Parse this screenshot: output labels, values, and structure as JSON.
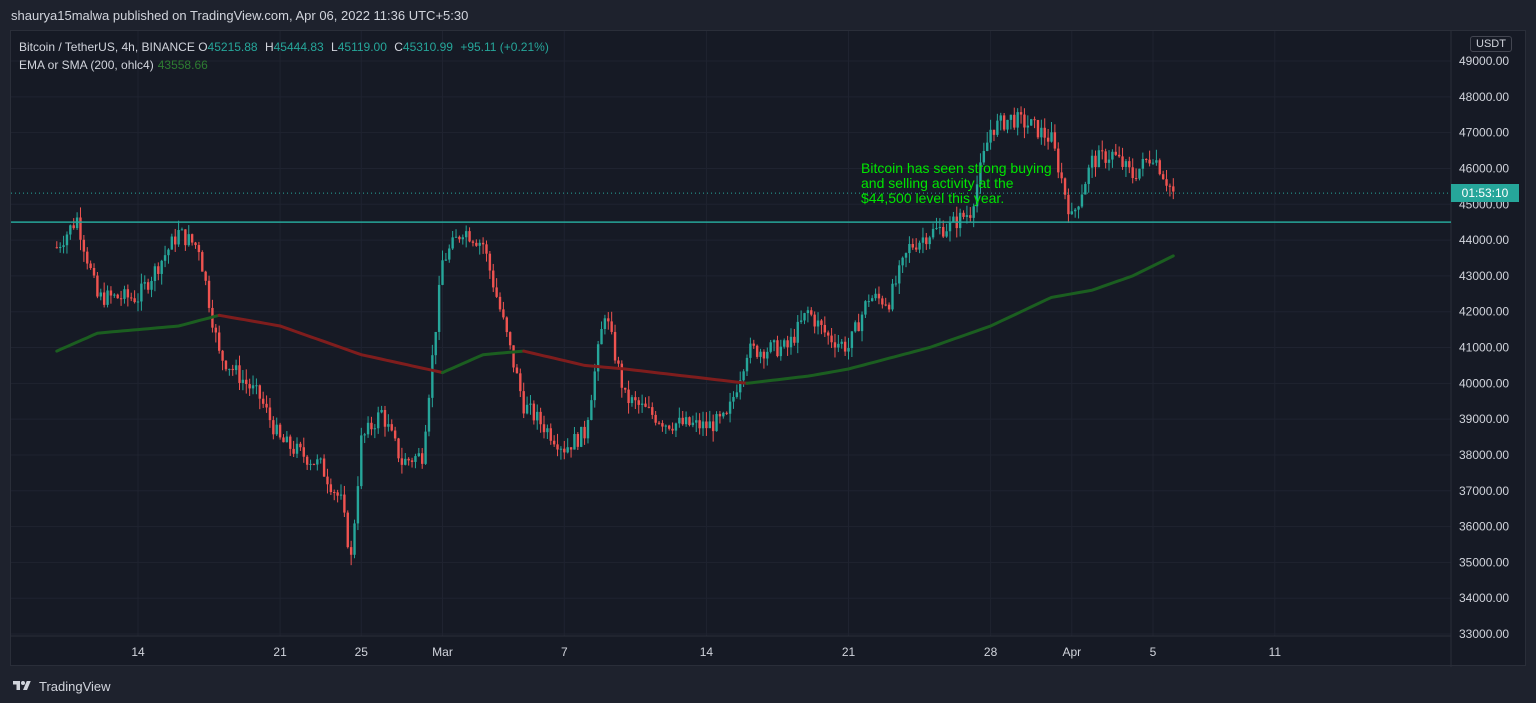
{
  "header": {
    "published_text": "shaurya15malwa published on TradingView.com, Apr 06, 2022 11:36 UTC+5:30"
  },
  "legend": {
    "symbol": "Bitcoin / TetherUS, 4h, BINANCE",
    "open_label": "O",
    "open": "45215.88",
    "high_label": "H",
    "high": "45444.83",
    "low_label": "L",
    "low": "45119.00",
    "close_label": "C",
    "close": "45310.99",
    "change": "+95.11 (+0.21%)",
    "indicator_name": "EMA or SMA (200, ohlc4)",
    "indicator_value": "43558.66"
  },
  "annotation": "Bitcoin has seen strong buying\nand selling activity at the\n$44,500 level this year.",
  "price_axis": {
    "currency": "USDT",
    "countdown": "01:53:10"
  },
  "footer": {
    "brand": "TradingView"
  },
  "colors": {
    "up": "#26a69a",
    "down": "#ef5350",
    "ma_up": "#1b5e20",
    "ma_down": "#7f1d1d",
    "support_line": "#26a69a",
    "annotation": "#00e600"
  },
  "chart_data": {
    "type": "candlestick",
    "ylim": [
      33000,
      49500
    ],
    "y_ticks": [
      "33000.00",
      "34000.00",
      "35000.00",
      "36000.00",
      "37000.00",
      "38000.00",
      "39000.00",
      "40000.00",
      "41000.00",
      "42000.00",
      "43000.00",
      "44000.00",
      "45000.00",
      "46000.00",
      "47000.00",
      "48000.00",
      "49000.00"
    ],
    "x_ticks": [
      "14",
      "21",
      "25",
      "Mar",
      "7",
      "14",
      "21",
      "28",
      "Apr",
      "5",
      "11"
    ],
    "horizontal_line": 44500,
    "last_price": 45310.99,
    "anchors": [
      {
        "date": "Feb 10",
        "price": 43800
      },
      {
        "date": "Feb 11",
        "price": 44600
      },
      {
        "date": "Feb 12",
        "price": 42400
      },
      {
        "date": "Feb 14",
        "price": 42400
      },
      {
        "date": "Feb 16",
        "price": 44200
      },
      {
        "date": "Feb 17",
        "price": 43800
      },
      {
        "date": "Feb 18",
        "price": 40800
      },
      {
        "date": "Feb 20",
        "price": 39600
      },
      {
        "date": "Feb 21",
        "price": 38400
      },
      {
        "date": "Feb 23",
        "price": 37700
      },
      {
        "date": "Feb 24",
        "price": 36700
      },
      {
        "date": "Feb 24",
        "price": 35100
      },
      {
        "date": "Feb 25",
        "price": 38400
      },
      {
        "date": "Feb 26",
        "price": 39200
      },
      {
        "date": "Feb 27",
        "price": 37800
      },
      {
        "date": "Feb 28",
        "price": 38000
      },
      {
        "date": "Mar 1",
        "price": 43400
      },
      {
        "date": "Mar 2",
        "price": 44300
      },
      {
        "date": "Mar 3",
        "price": 43900
      },
      {
        "date": "Mar 4",
        "price": 41700
      },
      {
        "date": "Mar 5",
        "price": 39400
      },
      {
        "date": "Mar 6",
        "price": 38800
      },
      {
        "date": "Mar 7",
        "price": 38200
      },
      {
        "date": "Mar 8",
        "price": 38600
      },
      {
        "date": "Mar 9",
        "price": 42000
      },
      {
        "date": "Mar 10",
        "price": 39600
      },
      {
        "date": "Mar 12",
        "price": 38900
      },
      {
        "date": "Mar 14",
        "price": 38800
      },
      {
        "date": "Mar 15",
        "price": 39000
      },
      {
        "date": "Mar 16",
        "price": 40900
      },
      {
        "date": "Mar 18",
        "price": 41000
      },
      {
        "date": "Mar 19",
        "price": 42000
      },
      {
        "date": "Mar 20",
        "price": 41300
      },
      {
        "date": "Mar 21",
        "price": 41000
      },
      {
        "date": "Mar 22",
        "price": 42400
      },
      {
        "date": "Mar 23",
        "price": 42300
      },
      {
        "date": "Mar 24",
        "price": 43800
      },
      {
        "date": "Mar 25",
        "price": 44200
      },
      {
        "date": "Mar 26",
        "price": 44400
      },
      {
        "date": "Mar 27",
        "price": 44800
      },
      {
        "date": "Mar 28",
        "price": 47100
      },
      {
        "date": "Mar 29",
        "price": 47400
      },
      {
        "date": "Mar 30",
        "price": 47200
      },
      {
        "date": "Mar 31",
        "price": 46800
      },
      {
        "date": "Apr 1",
        "price": 44600
      },
      {
        "date": "Apr 2",
        "price": 46200
      },
      {
        "date": "Apr 3",
        "price": 46400
      },
      {
        "date": "Apr 4",
        "price": 45800
      },
      {
        "date": "Apr 5",
        "price": 46400
      },
      {
        "date": "Apr 6",
        "price": 45310
      }
    ],
    "moving_average": [
      {
        "date": "Feb 10",
        "price": 40900
      },
      {
        "date": "Feb 12",
        "price": 41400
      },
      {
        "date": "Feb 16",
        "price": 41600
      },
      {
        "date": "Feb 18",
        "price": 41900
      },
      {
        "date": "Feb 21",
        "price": 41600
      },
      {
        "date": "Feb 25",
        "price": 40800
      },
      {
        "date": "Mar 1",
        "price": 40300
      },
      {
        "date": "Mar 3",
        "price": 40800
      },
      {
        "date": "Mar 5",
        "price": 40900
      },
      {
        "date": "Mar 8",
        "price": 40500
      },
      {
        "date": "Mar 10",
        "price": 40400
      },
      {
        "date": "Mar 16",
        "price": 40000
      },
      {
        "date": "Mar 19",
        "price": 40200
      },
      {
        "date": "Mar 21",
        "price": 40400
      },
      {
        "date": "Mar 25",
        "price": 41000
      },
      {
        "date": "Mar 28",
        "price": 41600
      },
      {
        "date": "Mar 31",
        "price": 42400
      },
      {
        "date": "Apr 2",
        "price": 42600
      },
      {
        "date": "Apr 4",
        "price": 43000
      },
      {
        "date": "Apr 6",
        "price": 43558.66
      }
    ],
    "ma_color_segments": [
      {
        "from": "Feb 10",
        "to": "Feb 18",
        "trend": "up"
      },
      {
        "from": "Feb 18",
        "to": "Mar 1",
        "trend": "down"
      },
      {
        "from": "Mar 1",
        "to": "Mar 5",
        "trend": "up"
      },
      {
        "from": "Mar 5",
        "to": "Mar 10",
        "trend": "down"
      },
      {
        "from": "Mar 10",
        "to": "Mar 16",
        "trend": "down"
      },
      {
        "from": "Mar 16",
        "to": "Apr 6",
        "trend": "up"
      }
    ]
  }
}
